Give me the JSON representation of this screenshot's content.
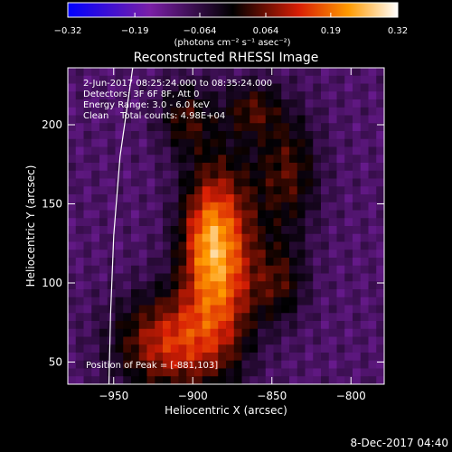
{
  "chart_data": {
    "type": "heatmap",
    "title": "Reconstructed RHESSI Image",
    "xlabel": "Heliocentric X (arcsec)",
    "ylabel": "Heliocentric Y (arcsec)",
    "xlim": [
      -979,
      -779
    ],
    "ylim": [
      36,
      236
    ],
    "x_ticks": [
      -950,
      -900,
      -850,
      -800
    ],
    "y_ticks": [
      50,
      100,
      150,
      200
    ],
    "colorbar": {
      "label": "(photons cm⁻² s⁻¹ asec⁻²)",
      "range": [
        -0.32,
        0.32
      ],
      "ticks": [
        -0.32,
        -0.19,
        -0.064,
        0.064,
        0.19,
        0.32
      ],
      "tick_labels": [
        "-0.32",
        "-0.19",
        "-0.064",
        "0.064",
        "0.19",
        "0.32"
      ]
    },
    "annotations": [
      "2-Jun-2017 08:25:24.000 to 08:35:24.000",
      "Detectors: 3F 6F 8F, Att 0",
      "Energy Range: 3.0 - 6.0 keV",
      "Clean    Total counts: 4.98E+04",
      "Position of Peak = [-881,103]"
    ],
    "sources": [
      {
        "x": -883,
        "y": 118,
        "sx": 16,
        "sy": 42,
        "amp": 0.3
      },
      {
        "x": -893,
        "y": 128,
        "sx": 10,
        "sy": 22,
        "amp": 0.08
      },
      {
        "x": -915,
        "y": 62,
        "sx": 24,
        "sy": 22,
        "amp": 0.22
      },
      {
        "x": -840,
        "y": 170,
        "sx": 14,
        "sy": 28,
        "amp": 0.14
      },
      {
        "x": -862,
        "y": 210,
        "sx": 12,
        "sy": 12,
        "amp": 0.12
      },
      {
        "x": -905,
        "y": 205,
        "sx": 12,
        "sy": 16,
        "amp": 0.12
      },
      {
        "x": -845,
        "y": 100,
        "sx": 12,
        "sy": 18,
        "amp": 0.12
      }
    ],
    "background_level": -0.1,
    "limb": [
      [
        -938,
        236
      ],
      [
        -946,
        180
      ],
      [
        -950,
        130
      ],
      [
        -952,
        80
      ],
      [
        -953,
        36
      ]
    ]
  },
  "footer": {
    "date": "8-Dec-2017 04:40"
  }
}
